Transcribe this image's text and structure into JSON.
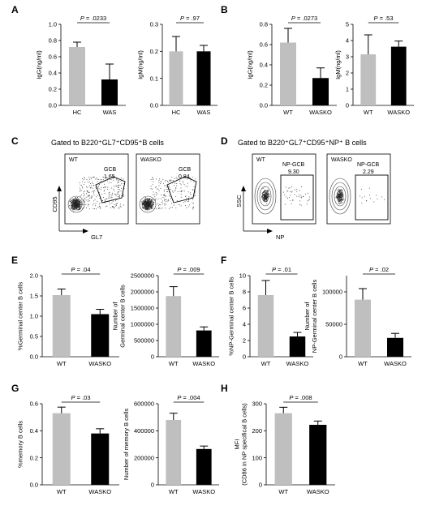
{
  "panels": {
    "A": "A",
    "B": "B",
    "C": "C",
    "D": "D",
    "E": "E",
    "F": "F",
    "G": "G",
    "H": "H"
  },
  "colors": {
    "gray": "#bfbfbf",
    "black": "#000000"
  },
  "flow": {
    "C": {
      "title": "Gated to B220⁺GL7⁺CD95⁺B cells",
      "yaxis": "CD95",
      "xaxis": "GL7",
      "plots": [
        {
          "label": "WT",
          "gate": "GCB",
          "value": "1.65"
        },
        {
          "label": "WASKO",
          "gate": "GCB",
          "value": "0.84"
        }
      ]
    },
    "D": {
      "title": "Gated to B220⁺GL7⁺CD95⁺NP⁺ B cells",
      "yaxis": "SSC",
      "xaxis": "NP",
      "plots": [
        {
          "label": "WT",
          "gate": "NP-GCB",
          "value": "9.30"
        },
        {
          "label": "WASKO",
          "gate": "NP-GCB",
          "value": "2.29"
        }
      ]
    }
  },
  "chart_data": [
    {
      "id": "A1",
      "type": "bar",
      "categories": [
        "HC",
        "WAS"
      ],
      "values": [
        0.72,
        0.32
      ],
      "errors": [
        0.06,
        0.19
      ],
      "ylabel": "IgG(ng/ml)",
      "ylim": [
        0,
        1.0
      ],
      "ticks": [
        "0.0",
        "0.2",
        "0.4",
        "0.6",
        "0.8",
        "1.0"
      ],
      "tickvals": [
        0,
        0.2,
        0.4,
        0.6,
        0.8,
        1.0
      ],
      "pvalue": "P = .0233",
      "colors": [
        "#bfbfbf",
        "#000000"
      ]
    },
    {
      "id": "A2",
      "type": "bar",
      "categories": [
        "HC",
        "WAS"
      ],
      "values": [
        0.2,
        0.2
      ],
      "errors": [
        0.055,
        0.022
      ],
      "ylabel": "IgM(ng/ml)",
      "ylim": [
        0,
        0.3
      ],
      "ticks": [
        "0.0",
        "0.1",
        "0.2",
        "0.3"
      ],
      "tickvals": [
        0,
        0.1,
        0.2,
        0.3
      ],
      "pvalue": "P = .97",
      "colors": [
        "#bfbfbf",
        "#000000"
      ]
    },
    {
      "id": "B1",
      "type": "bar",
      "categories": [
        "WT",
        "WASKO"
      ],
      "values": [
        0.62,
        0.27
      ],
      "errors": [
        0.14,
        0.1
      ],
      "ylabel": "IgG(ng/ml)",
      "ylim": [
        0,
        0.8
      ],
      "ticks": [
        "0.0",
        "0.2",
        "0.4",
        "0.6",
        "0.8"
      ],
      "tickvals": [
        0,
        0.2,
        0.4,
        0.6,
        0.8
      ],
      "pvalue": "P = .0273",
      "colors": [
        "#bfbfbf",
        "#000000"
      ]
    },
    {
      "id": "B2",
      "type": "bar",
      "categories": [
        "WT",
        "WASKO"
      ],
      "values": [
        3.15,
        3.62
      ],
      "errors": [
        1.2,
        0.35
      ],
      "ylabel": "IgM(ng/ml)",
      "ylim": [
        0,
        5
      ],
      "ticks": [
        "0",
        "1",
        "2",
        "3",
        "4",
        "5"
      ],
      "tickvals": [
        0,
        1,
        2,
        3,
        4,
        5
      ],
      "pvalue": "P = .53",
      "colors": [
        "#bfbfbf",
        "#000000"
      ]
    },
    {
      "id": "E1",
      "type": "bar",
      "categories": [
        "WT",
        "WASKO"
      ],
      "values": [
        1.52,
        1.05
      ],
      "errors": [
        0.15,
        0.12
      ],
      "ylabel": "%Germinal center B cells",
      "ylim": [
        0,
        2.0
      ],
      "ticks": [
        "0.0",
        "0.5",
        "1.0",
        "1.5",
        "2.0"
      ],
      "tickvals": [
        0,
        0.5,
        1.0,
        1.5,
        2.0
      ],
      "pvalue": "P = .04",
      "colors": [
        "#bfbfbf",
        "#000000"
      ]
    },
    {
      "id": "E2",
      "type": "bar",
      "categories": [
        "WT",
        "WASKO"
      ],
      "values": [
        1870000,
        810000
      ],
      "errors": [
        290000,
        110000
      ],
      "ylabel": "Number of\nGerminal center B cells",
      "ylim": [
        0,
        2500000
      ],
      "ticks": [
        "0",
        "500000",
        "1000000",
        "1500000",
        "2000000",
        "2500000"
      ],
      "tickvals": [
        0,
        500000,
        1000000,
        1500000,
        2000000,
        2500000
      ],
      "pvalue": "P = .009",
      "colors": [
        "#bfbfbf",
        "#000000"
      ]
    },
    {
      "id": "F1",
      "type": "bar",
      "categories": [
        "WT",
        "WASKO"
      ],
      "values": [
        7.6,
        2.5
      ],
      "errors": [
        1.8,
        0.5
      ],
      "ylabel": "%NP-Germinal center B cells",
      "ylim": [
        0,
        10
      ],
      "ticks": [
        "0",
        "2",
        "4",
        "6",
        "8",
        "10"
      ],
      "tickvals": [
        0,
        2,
        4,
        6,
        8,
        10
      ],
      "pvalue": "P = .01",
      "colors": [
        "#bfbfbf",
        "#000000"
      ]
    },
    {
      "id": "F2",
      "type": "bar",
      "categories": [
        "WT",
        "WASKO"
      ],
      "values": [
        88000,
        29000
      ],
      "errors": [
        17000,
        7000
      ],
      "ylabel": "Number of\nNP-Germinal center B cells",
      "ylim": [
        0,
        125000
      ],
      "ticks": [
        "0",
        "50000",
        "100000"
      ],
      "tickvals": [
        0,
        50000,
        100000
      ],
      "pvalue": "P = .02",
      "colors": [
        "#bfbfbf",
        "#000000"
      ]
    },
    {
      "id": "G1",
      "type": "bar",
      "categories": [
        "WT",
        "WASKO"
      ],
      "values": [
        0.53,
        0.38
      ],
      "errors": [
        0.045,
        0.035
      ],
      "ylabel": "%memory B cells",
      "ylim": [
        0,
        0.6
      ],
      "ticks": [
        "0.0",
        "0.2",
        "0.4",
        "0.6"
      ],
      "tickvals": [
        0,
        0.2,
        0.4,
        0.6
      ],
      "pvalue": "P = .03",
      "colors": [
        "#bfbfbf",
        "#000000"
      ]
    },
    {
      "id": "G2",
      "type": "bar",
      "categories": [
        "WT",
        "WASKO"
      ],
      "values": [
        480000,
        265000
      ],
      "errors": [
        50000,
        22000
      ],
      "ylabel": "Number of memory B cells",
      "ylim": [
        0,
        600000
      ],
      "ticks": [
        "0",
        "200000",
        "400000",
        "600000"
      ],
      "tickvals": [
        0,
        200000,
        400000,
        600000
      ],
      "pvalue": "P = .004",
      "colors": [
        "#bfbfbf",
        "#000000"
      ]
    },
    {
      "id": "H1",
      "type": "bar",
      "categories": [
        "WT",
        "WASKO"
      ],
      "values": [
        265,
        222
      ],
      "errors": [
        22,
        14
      ],
      "ylabel": "MFI\n(CD86 in NP specifical B cells)",
      "ylim": [
        0,
        300
      ],
      "ticks": [
        "0",
        "100",
        "200",
        "300"
      ],
      "tickvals": [
        0,
        100,
        200,
        300
      ],
      "pvalue": "P = .008",
      "colors": [
        "#bfbfbf",
        "#000000"
      ]
    }
  ]
}
